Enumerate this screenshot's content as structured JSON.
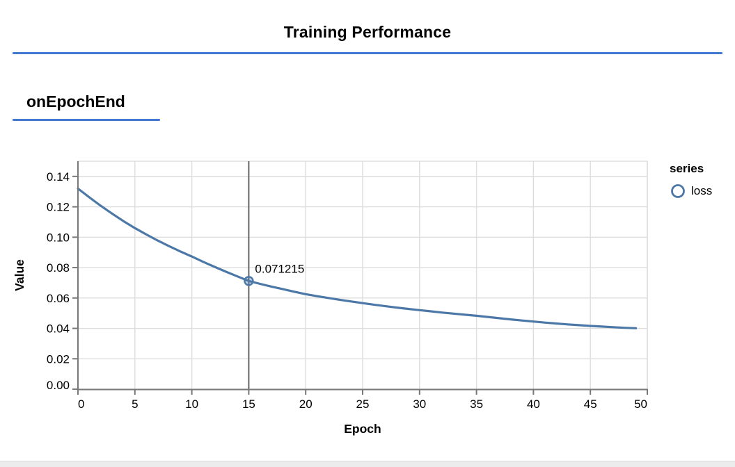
{
  "header": {
    "title": "Training Performance"
  },
  "section": {
    "heading": "onEpochEnd"
  },
  "colors": {
    "accent_blue": "#4378d2",
    "series_blue": "#4c78a8",
    "grid": "#dddddd",
    "axis": "#787878",
    "rule": "#666666",
    "text": "#000000",
    "bottom_strip": "#ececec"
  },
  "legend": {
    "title": "series",
    "entries": [
      {
        "label": "loss",
        "color": "#4c78a8",
        "marker": "circle-icon"
      }
    ]
  },
  "chart_data": {
    "type": "line",
    "title": "",
    "xlabel": "Epoch",
    "ylabel": "Value",
    "xlim": [
      0,
      50
    ],
    "ylim": [
      0,
      0.15
    ],
    "x_ticks": [
      0,
      5,
      10,
      15,
      20,
      25,
      30,
      35,
      40,
      45,
      50
    ],
    "y_ticks": [
      0,
      0.02,
      0.04,
      0.06,
      0.08,
      0.1,
      0.12,
      0.14
    ],
    "grid": true,
    "legend_position": "right",
    "series": [
      {
        "name": "loss",
        "color": "#4c78a8",
        "x": [
          0,
          1,
          2,
          3,
          4,
          5,
          6,
          7,
          8,
          9,
          10,
          11,
          12,
          13,
          14,
          15,
          16,
          17,
          18,
          19,
          20,
          21,
          22,
          23,
          24,
          25,
          26,
          27,
          28,
          29,
          30,
          31,
          32,
          33,
          34,
          35,
          36,
          37,
          38,
          39,
          40,
          41,
          42,
          43,
          44,
          45,
          46,
          47,
          48,
          49
        ],
        "values": [
          0.132,
          0.1262,
          0.1207,
          0.1155,
          0.1106,
          0.106,
          0.1018,
          0.0978,
          0.0941,
          0.0906,
          0.0873,
          0.0838,
          0.0805,
          0.0773,
          0.0742,
          0.071215,
          0.0693,
          0.0675,
          0.0658,
          0.0641,
          0.0625,
          0.0612,
          0.06,
          0.0588,
          0.0577,
          0.0566,
          0.0556,
          0.0546,
          0.0537,
          0.0528,
          0.052,
          0.0512,
          0.0504,
          0.0497,
          0.049,
          0.0483,
          0.0475,
          0.0467,
          0.0459,
          0.0452,
          0.0445,
          0.0438,
          0.0432,
          0.0426,
          0.0421,
          0.0416,
          0.0412,
          0.0408,
          0.0404,
          0.0401
        ]
      }
    ],
    "highlight": {
      "x": 15,
      "value": 0.071215,
      "label": "0.071215"
    }
  }
}
